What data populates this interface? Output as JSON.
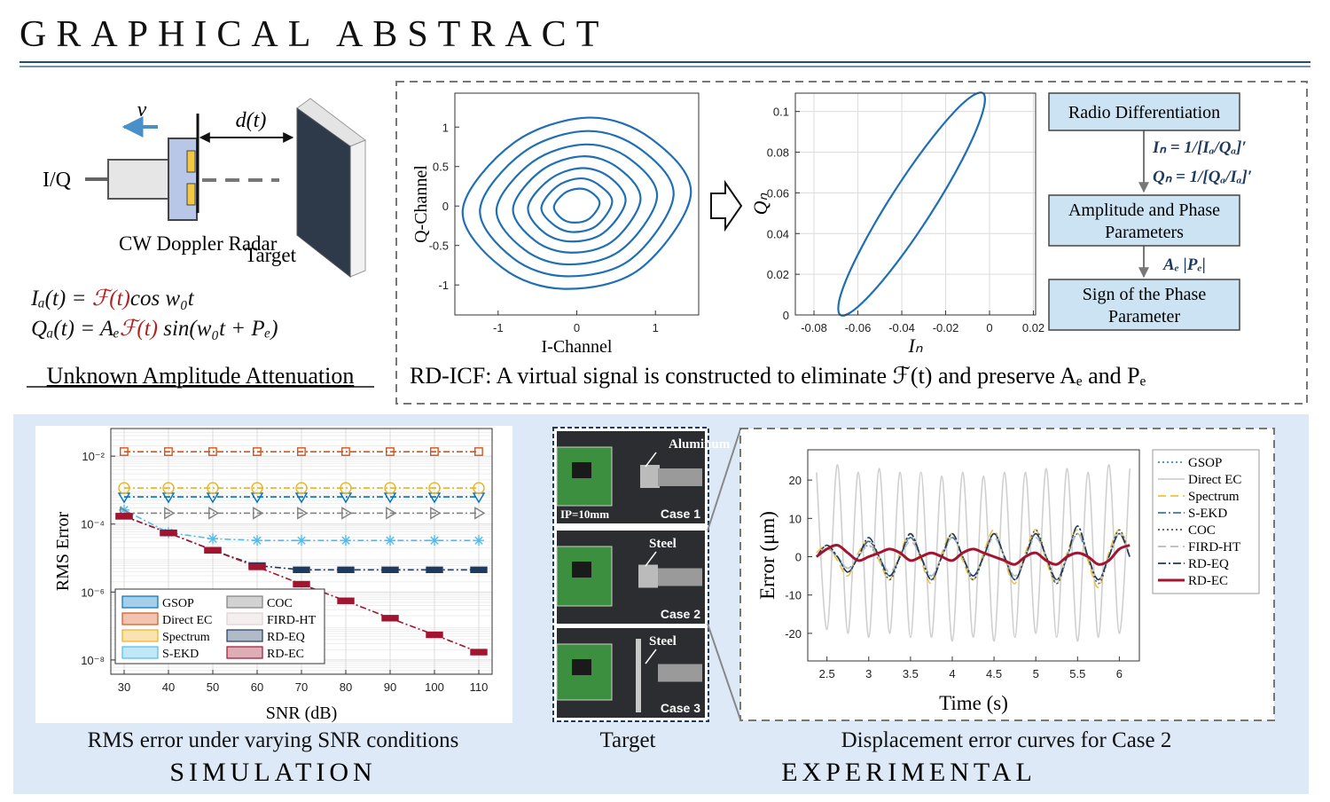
{
  "header": {
    "title": "GRAPHICAL ABSTRACT"
  },
  "radar": {
    "velocity": "v",
    "distance": "d(t)",
    "port": "I/Q",
    "radar": "CW Doppler Radar",
    "target": "Target",
    "equations": [
      [
        "Iₐ(t) = ",
        "ℱ(t)",
        "cos w₀t"
      ],
      [
        "Qₐ(t) = Aₑ",
        "ℱ(t)",
        " sin(w₀t + Pₑ)"
      ]
    ],
    "caption": "Unknown Amplitude Attenuation"
  },
  "flow": {
    "nodes": [
      [
        "Radio Differentiation"
      ],
      [
        "Amplitude and Phase",
        "Parameters"
      ],
      [
        "Sign of the Phase",
        "Parameter"
      ]
    ],
    "edges": [
      [
        "Iₙ = 1/[Iₐ/Qₐ]′",
        "Qₙ = 1/[Qₐ/Iₐ]′"
      ],
      [
        "Aₑ |Pₑ|"
      ]
    ]
  },
  "method_caption": "RD-ICF:  A virtual signal is constructed to eliminate  ℱ(t)  and preserve  Aₑ  and  Pₑ",
  "photos": [
    {
      "material": "Aluminum",
      "note": "IP=10mm",
      "case": "Case 1"
    },
    {
      "material": "Steel",
      "case": "Case 2"
    },
    {
      "material": "Steel",
      "case": "Case 3"
    }
  ],
  "captions": {
    "simulation_plot": "RMS error under varying SNR conditions",
    "target": "Target",
    "experiment_plot": "Displacement error curves for Case 2",
    "simulation": "SIMULATION",
    "experimental": "EXPERIMENTAL"
  },
  "chart_data": [
    {
      "type": "line",
      "xlabel": "I-Channel",
      "ylabel": "Q-Channel",
      "xlim": [
        -1.55,
        1.55
      ],
      "ylim": [
        -1.38,
        1.43
      ],
      "xticks": [
        -1,
        0,
        1
      ],
      "yticks": [
        -1,
        -0.5,
        0,
        0.5,
        1
      ],
      "color": "#1f6fb5",
      "closed": true,
      "series": [
        {
          "x": [
            1.45,
            0.95,
            0.15,
            -0.8,
            -1.45,
            -0.95,
            -0.15,
            0.8
          ],
          "values": [
            0.15,
            0.85,
            1.12,
            0.8,
            -0.05,
            -0.78,
            -1.05,
            -0.8
          ]
        },
        {
          "x": [
            1.23,
            0.81,
            0.13,
            -0.68,
            -1.23,
            -0.81,
            -0.13,
            0.68
          ],
          "values": [
            0.13,
            0.72,
            0.95,
            0.68,
            -0.04,
            -0.66,
            -0.89,
            -0.68
          ]
        },
        {
          "x": [
            1.02,
            0.67,
            0.11,
            -0.56,
            -1.02,
            -0.67,
            -0.11,
            0.56
          ],
          "values": [
            0.11,
            0.6,
            0.78,
            0.56,
            -0.04,
            -0.55,
            -0.74,
            -0.56
          ]
        },
        {
          "x": [
            0.81,
            0.53,
            0.08,
            -0.45,
            -0.81,
            -0.53,
            -0.08,
            0.45
          ],
          "values": [
            0.08,
            0.48,
            0.63,
            0.45,
            -0.03,
            -0.44,
            -0.59,
            -0.45
          ]
        },
        {
          "x": [
            0.62,
            0.41,
            0.06,
            -0.34,
            -0.62,
            -0.41,
            -0.06,
            0.34
          ],
          "values": [
            0.06,
            0.37,
            0.48,
            0.34,
            -0.02,
            -0.34,
            -0.45,
            -0.34
          ]
        },
        {
          "x": [
            0.45,
            0.29,
            0.05,
            -0.25,
            -0.45,
            -0.29,
            -0.05,
            0.25
          ],
          "values": [
            0.05,
            0.26,
            0.35,
            0.25,
            -0.02,
            -0.24,
            -0.33,
            -0.25
          ]
        },
        {
          "x": [
            0.29,
            0.19,
            0.03,
            -0.16,
            -0.29,
            -0.19,
            -0.03,
            0.16
          ],
          "values": [
            0.03,
            0.17,
            0.22,
            0.16,
            -0.01,
            -0.16,
            -0.21,
            -0.16
          ]
        }
      ]
    },
    {
      "type": "line",
      "xlabel": "Iₙ",
      "ylabel": "Qₙ",
      "xlim": [
        -0.0885,
        0.021
      ],
      "ylim": [
        0,
        0.109
      ],
      "xticks": [
        -0.08,
        -0.06,
        -0.04,
        -0.02,
        0,
        0.02
      ],
      "yticks": [
        0,
        0.02,
        0.04,
        0.06,
        0.08,
        0.1
      ],
      "grid": true,
      "color": "#1f6fb5",
      "closed": true,
      "series": [
        {
          "x": [
            -0.003,
            -0.0114,
            -0.0262,
            -0.0435,
            -0.0587,
            -0.0677,
            -0.068,
            -0.0597,
            -0.0448,
            -0.0275,
            -0.0123,
            -0.0034
          ],
          "values": [
            0.109,
            0.1047,
            0.0869,
            0.0605,
            0.0324,
            0.0103,
            0,
            0.0043,
            0.0221,
            0.0485,
            0.0766,
            0.0987
          ]
        }
      ]
    },
    {
      "type": "line",
      "xlabel": "SNR (dB)",
      "ylabel": "RMS Error",
      "log_y": true,
      "grid": true,
      "legend": "lower left",
      "xlim": [
        27,
        113
      ],
      "ylim": [
        3.8e-09,
        0.065
      ],
      "xticks": [
        30,
        40,
        50,
        60,
        70,
        80,
        90,
        100,
        110
      ],
      "yticks": [
        {
          "value": 1e-08,
          "label": "10⁻⁸"
        },
        {
          "value": 1e-06,
          "label": "10⁻⁶"
        },
        {
          "value": 0.0001,
          "label": "10⁻⁴"
        },
        {
          "value": 0.01,
          "label": "10⁻²"
        }
      ],
      "x": [
        30,
        40,
        50,
        60,
        70,
        80,
        90,
        100,
        110
      ],
      "series": [
        {
          "name": "GSOP",
          "color": "#0072bd",
          "marker": "triangle-down",
          "values": [
            0.00063,
            0.00063,
            0.00063,
            0.00063,
            0.00063,
            0.00063,
            0.00063,
            0.00063,
            0.00063
          ]
        },
        {
          "name": "Direct EC",
          "color": "#d95319",
          "marker": "square",
          "values": [
            0.0135,
            0.0135,
            0.0135,
            0.0135,
            0.0135,
            0.0135,
            0.0135,
            0.0135,
            0.0135
          ]
        },
        {
          "name": "Spectrum",
          "color": "#edb120",
          "marker": "circle",
          "values": [
            0.00115,
            0.00115,
            0.00115,
            0.00115,
            0.00115,
            0.00115,
            0.00115,
            0.00115,
            0.00115
          ]
        },
        {
          "name": "S-EKD",
          "color": "#4dbeee",
          "marker": "star",
          "values": [
            0.00026,
            5.6e-05,
            3.7e-05,
            3.3e-05,
            3.3e-05,
            3.3e-05,
            3.3e-05,
            3.3e-05,
            3.3e-05
          ]
        },
        {
          "name": "COC",
          "color": "#7f7f7f",
          "marker": "triangle-right",
          "values": [
            0.00021,
            0.00021,
            0.00021,
            0.00021,
            0.00021,
            0.00021,
            0.00021,
            0.00021,
            0.00021
          ]
        },
        {
          "name": "FIRD-HT",
          "color": "#e3cfcf",
          "marker": "none",
          "values": [
            0.00017,
            5.5e-05,
            1.7e-05,
            5.5e-06,
            1.7e-06,
            5.5e-07,
            1.7e-07,
            5.5e-08,
            1.7e-08
          ]
        },
        {
          "name": "RD-EQ",
          "color": "#1f3a5f",
          "marker": "plus",
          "values": [
            0.00017,
            5.5e-05,
            1.7e-05,
            6e-06,
            4.5e-06,
            4.5e-06,
            4.5e-06,
            4.5e-06,
            4.5e-06
          ]
        },
        {
          "name": "RD-EC",
          "color": "#a2142f",
          "marker": "plus",
          "values": [
            0.00017,
            5.5e-05,
            1.7e-05,
            5.5e-06,
            1.7e-06,
            5.5e-07,
            1.7e-07,
            5.5e-08,
            1.7e-08
          ]
        }
      ]
    },
    {
      "type": "line",
      "xlabel": "Time (s)",
      "ylabel": "Error (μm)",
      "legend": "outside right",
      "xlim": [
        2.27,
        6.24
      ],
      "ylim": [
        -27.2,
        27.9
      ],
      "xticks": [
        2.5,
        3,
        3.5,
        4,
        4.5,
        5,
        5.5,
        6
      ],
      "yticks": [
        -20,
        -10,
        0,
        10,
        20
      ],
      "x": [
        2.375,
        2.5,
        2.625,
        2.75,
        2.875,
        3,
        3.125,
        3.25,
        3.375,
        3.5,
        3.625,
        3.75,
        3.875,
        4,
        4.125,
        4.25,
        4.375,
        4.5,
        4.625,
        4.75,
        4.875,
        5,
        5.125,
        5.25,
        5.375,
        5.5,
        5.625,
        5.75,
        5.875,
        6,
        6.125
      ],
      "series": [
        {
          "name": "GSOP",
          "color": "#3a8fc8",
          "style": "dotted",
          "values": [
            0,
            2,
            0,
            -3,
            0,
            3,
            -1,
            -5,
            0,
            5,
            0,
            -6,
            0,
            5,
            0,
            -6,
            0,
            6,
            0,
            -6,
            0,
            6,
            0,
            -7,
            0,
            6,
            0,
            -6,
            0,
            7,
            0
          ]
        },
        {
          "name": "Direct EC",
          "color": "#cfcfcf",
          "style": "solid",
          "values": [
            22,
            -19,
            24,
            -20,
            22,
            -21,
            23,
            -20,
            22,
            -21,
            22,
            -21,
            21,
            -22,
            22,
            -21,
            21,
            -22,
            22,
            -21,
            22,
            -20,
            23,
            -21,
            23,
            -22,
            22,
            -21,
            24,
            -20,
            23
          ]
        },
        {
          "name": "Spectrum",
          "color": "#f0c040",
          "style": "dashed",
          "values": [
            1,
            3,
            -1,
            -5,
            1,
            4,
            -1,
            -6,
            1,
            6,
            -1,
            -7,
            1,
            6,
            -1,
            -6,
            1,
            7,
            -1,
            -7,
            1,
            7,
            -1,
            -7,
            1,
            7,
            -1,
            -8,
            1,
            7,
            0
          ]
        },
        {
          "name": "S-EKD",
          "color": "#3a78a8",
          "style": "dashdot",
          "values": [
            0,
            2,
            0,
            -4,
            0,
            4,
            0,
            -5,
            0,
            5,
            0,
            -5,
            0,
            5,
            0,
            -5,
            0,
            6,
            0,
            -6,
            0,
            6,
            0,
            -6,
            0,
            6,
            0,
            -6,
            0,
            6,
            0
          ]
        },
        {
          "name": "COC",
          "color": "#555555",
          "style": "dotted",
          "values": [
            0,
            3,
            0,
            -4,
            0,
            4,
            0,
            -6,
            0,
            6,
            0,
            -6,
            0,
            6,
            0,
            -6,
            0,
            6,
            0,
            -6,
            0,
            7,
            0,
            -7,
            0,
            8,
            0,
            -7,
            0,
            7,
            0
          ]
        },
        {
          "name": "FIRD-HT",
          "color": "#bbbbbb",
          "style": "dashed",
          "values": [
            0,
            2,
            0,
            -3,
            0,
            3,
            0,
            -4,
            0,
            4,
            0,
            -5,
            0,
            5,
            0,
            -5,
            0,
            5,
            0,
            -5,
            0,
            5,
            0,
            -6,
            0,
            6,
            0,
            -6,
            0,
            6,
            0
          ]
        },
        {
          "name": "RD-EQ",
          "color": "#1f3a5f",
          "style": "dashdot",
          "values": [
            0,
            3,
            0,
            -4,
            0,
            5,
            0,
            -5,
            0,
            6,
            0,
            -6,
            0,
            6,
            0,
            -5,
            0,
            6,
            0,
            -6,
            0,
            6,
            0,
            -6,
            0,
            8,
            0,
            -6,
            0,
            6,
            0
          ]
        },
        {
          "name": "RD-EC",
          "color": "#a2142f",
          "style": "solid",
          "width": 3,
          "values": [
            0,
            2,
            3,
            1,
            -1,
            0,
            1,
            2,
            1,
            -1,
            0,
            1,
            0,
            -1,
            1,
            2,
            1,
            0,
            -1,
            -2,
            0,
            1,
            -1,
            -2,
            0,
            1,
            0,
            -2,
            -1,
            2,
            3
          ]
        }
      ]
    }
  ]
}
